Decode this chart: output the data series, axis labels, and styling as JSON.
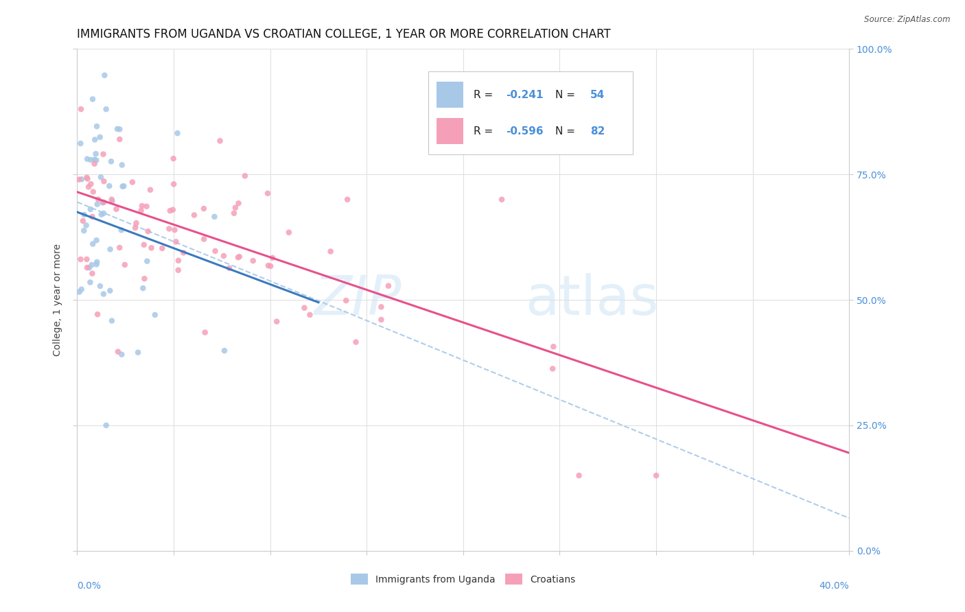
{
  "title": "IMMIGRANTS FROM UGANDA VS CROATIAN COLLEGE, 1 YEAR OR MORE CORRELATION CHART",
  "source": "Source: ZipAtlas.com",
  "ylabel": "College, 1 year or more",
  "legend_label1": "Immigrants from Uganda",
  "legend_label2": "Croatians",
  "uganda_color": "#a8c8e8",
  "croatian_color": "#f5a0b8",
  "uganda_line_color": "#3a7abf",
  "croatian_line_color": "#e8508a",
  "dashed_line_color": "#a8c8e8",
  "xlim": [
    0.0,
    0.4
  ],
  "ylim": [
    0.0,
    1.0
  ],
  "background_color": "#ffffff",
  "grid_color": "#e0e0e0",
  "title_fontsize": 12,
  "axis_label_fontsize": 10,
  "tick_fontsize": 10,
  "scatter_size": 38,
  "right_tick_color": "#4a90d9",
  "uganda_trend_x0": 0.0,
  "uganda_trend_y0": 0.675,
  "uganda_trend_x1": 0.125,
  "uganda_trend_y1": 0.495,
  "croatian_trend_x0": 0.0,
  "croatian_trend_y0": 0.715,
  "croatian_trend_x1": 0.4,
  "croatian_trend_y1": 0.195,
  "dashed_trend_x0": 0.0,
  "dashed_trend_y0": 0.695,
  "dashed_trend_x1": 0.4,
  "dashed_trend_y1": 0.065
}
